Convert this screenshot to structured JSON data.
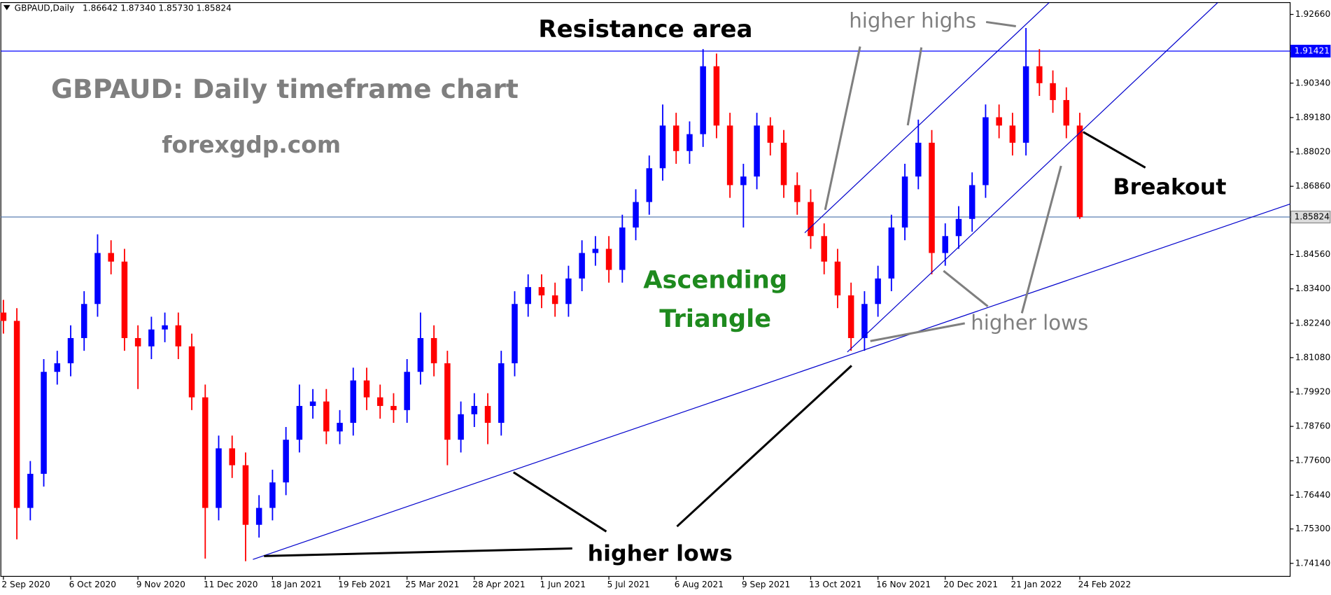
{
  "chart_data": {
    "type": "candlestick",
    "header": {
      "symbol": "GBPAUD,Daily",
      "ohlc": "1.86642 1.87340 1.85730 1.85824"
    },
    "title": "GBPAUD: Daily timeframe chart",
    "subtitle": "forexgdp.com",
    "annotations": {
      "resistance": "Resistance area",
      "pattern": [
        "Ascending",
        "Triangle"
      ],
      "higher_highs": "higher highs",
      "higher_lows_channel": "higher lows",
      "higher_lows_triangle": "higher lows",
      "breakout": "Breakout"
    },
    "categories": [
      "2 Sep 2020",
      null,
      null,
      null,
      null,
      "6 Oct 2020",
      null,
      null,
      null,
      null,
      "9 Nov 2020",
      null,
      null,
      null,
      null,
      "11 Dec 2020",
      null,
      null,
      null,
      null,
      "18 Jan 2021",
      null,
      null,
      null,
      null,
      "19 Feb 2021",
      null,
      null,
      null,
      null,
      "25 Mar 2021",
      null,
      null,
      null,
      null,
      "28 Apr 2021",
      null,
      null,
      null,
      null,
      "1 Jun 2021",
      null,
      null,
      null,
      null,
      "5 Jul 2021",
      null,
      null,
      null,
      null,
      "6 Aug 2021",
      null,
      null,
      null,
      null,
      "9 Sep 2021",
      null,
      null,
      null,
      null,
      "13 Oct 2021",
      null,
      null,
      null,
      null,
      "16 Nov 2021",
      null,
      null,
      null,
      null,
      "20 Dec 2021",
      null,
      null,
      null,
      null,
      "21 Jan 2022",
      null,
      null,
      null,
      null,
      "24 Feb 2022"
    ],
    "open": [
      1.826,
      1.8232,
      1.7601,
      1.7716,
      1.806,
      1.8089,
      1.8174,
      1.8289,
      1.8461,
      1.8432,
      1.8174,
      1.8146,
      1.8203,
      1.8217,
      1.8146,
      1.7974,
      1.7601,
      1.7802,
      1.7745,
      1.7544,
      1.7601,
      1.7687,
      1.7831,
      1.7945,
      1.796,
      1.7859,
      1.7888,
      1.8031,
      1.7974,
      1.7945,
      1.7931,
      1.806,
      1.8174,
      1.8089,
      1.7831,
      1.7917,
      1.7945,
      1.7888,
      1.8089,
      1.8289,
      1.8346,
      1.8318,
      1.8289,
      1.8375,
      1.8461,
      1.8475,
      1.8404,
      1.8547,
      1.8633,
      1.8747,
      1.8891,
      1.8805,
      1.8862,
      1.9091,
      1.8891,
      1.869,
      1.8719,
      1.8891,
      1.8833,
      1.869,
      1.8633,
      1.8518,
      1.8432,
      1.8318,
      1.8174,
      1.8289,
      1.8375,
      1.8547,
      1.8719,
      1.8833,
      1.8461,
      1.8518,
      1.8576,
      1.869,
      1.8919,
      1.8891,
      1.8833,
      1.9091,
      1.9034,
      1.8977,
      1.8891
    ],
    "high": [
      1.8303,
      1.8275,
      1.7759,
      1.8103,
      1.8131,
      1.8217,
      1.8332,
      1.8524,
      1.8504,
      1.8475,
      1.8217,
      1.8246,
      1.826,
      1.826,
      1.8189,
      1.8017,
      1.7845,
      1.7845,
      1.7788,
      1.7644,
      1.773,
      1.7874,
      1.8017,
      1.8002,
      1.8002,
      1.7931,
      1.8074,
      1.8074,
      1.8017,
      1.7988,
      1.8103,
      1.826,
      1.8217,
      1.8131,
      1.796,
      1.7988,
      1.7988,
      1.8131,
      1.8332,
      1.8389,
      1.8389,
      1.8361,
      1.8418,
      1.8504,
      1.8518,
      1.8518,
      1.859,
      1.8676,
      1.879,
      1.8962,
      1.8934,
      1.8905,
      1.9149,
      1.9134,
      1.8934,
      1.8762,
      1.8934,
      1.8919,
      1.8876,
      1.8733,
      1.8676,
      1.8561,
      1.8475,
      1.8361,
      1.8332,
      1.8418,
      1.859,
      1.8762,
      1.8911,
      1.8876,
      1.8561,
      1.8619,
      1.8733,
      1.8962,
      1.8962,
      1.8934,
      1.922,
      1.9149,
      1.9077,
      1.902,
      1.8934
    ],
    "low": [
      1.8189,
      1.7495,
      1.7559,
      1.7673,
      1.8017,
      1.8045,
      1.8131,
      1.8246,
      1.8389,
      1.8131,
      1.8002,
      1.8103,
      1.816,
      1.8103,
      1.7931,
      1.743,
      1.7559,
      1.7702,
      1.7421,
      1.7501,
      1.7559,
      1.7644,
      1.7788,
      1.7902,
      1.7816,
      1.7816,
      1.7845,
      1.7931,
      1.7902,
      1.7888,
      1.7888,
      1.8017,
      1.8045,
      1.7745,
      1.7788,
      1.7874,
      1.7816,
      1.7845,
      1.8045,
      1.8246,
      1.8275,
      1.8246,
      1.8246,
      1.8332,
      1.8418,
      1.8361,
      1.8361,
      1.8504,
      1.859,
      1.8705,
      1.8762,
      1.8762,
      1.8819,
      1.8848,
      1.8647,
      1.8547,
      1.8676,
      1.879,
      1.8647,
      1.859,
      1.8475,
      1.8389,
      1.8275,
      1.8131,
      1.8131,
      1.8246,
      1.8332,
      1.8504,
      1.8676,
      1.8389,
      1.8418,
      1.8475,
      1.8533,
      1.8647,
      1.8848,
      1.879,
      1.879,
      1.8991,
      1.8934,
      1.8848,
      1.8576
    ],
    "close": [
      1.8232,
      1.7601,
      1.7716,
      1.806,
      1.8089,
      1.8174,
      1.8289,
      1.8461,
      1.8432,
      1.8174,
      1.8146,
      1.8203,
      1.8217,
      1.8146,
      1.7974,
      1.7601,
      1.7802,
      1.7745,
      1.7544,
      1.7601,
      1.7687,
      1.7831,
      1.7945,
      1.796,
      1.7859,
      1.7888,
      1.8031,
      1.7974,
      1.7945,
      1.7931,
      1.806,
      1.8174,
      1.8089,
      1.7831,
      1.7917,
      1.7945,
      1.7888,
      1.8089,
      1.8289,
      1.8346,
      1.8318,
      1.8289,
      1.8375,
      1.8461,
      1.8475,
      1.8404,
      1.8547,
      1.8633,
      1.8747,
      1.8891,
      1.8805,
      1.8862,
      1.9091,
      1.8891,
      1.869,
      1.8719,
      1.8891,
      1.8833,
      1.869,
      1.8633,
      1.8518,
      1.8432,
      1.8318,
      1.8174,
      1.8289,
      1.8375,
      1.8547,
      1.8719,
      1.8833,
      1.8461,
      1.8518,
      1.8576,
      1.869,
      1.8919,
      1.8891,
      1.8833,
      1.9091,
      1.9034,
      1.8977,
      1.8891,
      1.85824
    ],
    "up_color": "#0000ff",
    "down_color": "#ff0000",
    "ylim": [
      1.737,
      1.9306
    ],
    "yticks": [
      {
        "value": 1.9266,
        "label": "1.92660"
      },
      {
        "value": 1.9034,
        "label": "1.90340"
      },
      {
        "value": 1.8918,
        "label": "1.89180"
      },
      {
        "value": 1.8802,
        "label": "1.88020"
      },
      {
        "value": 1.8686,
        "label": "1.86860"
      },
      {
        "value": 1.8456,
        "label": "1.84560"
      },
      {
        "value": 1.834,
        "label": "1.83400"
      },
      {
        "value": 1.8224,
        "label": "1.82240"
      },
      {
        "value": 1.8108,
        "label": "1.81080"
      },
      {
        "value": 1.7992,
        "label": "1.79920"
      },
      {
        "value": 1.7876,
        "label": "1.78760"
      },
      {
        "value": 1.776,
        "label": "1.77600"
      },
      {
        "value": 1.7644,
        "label": "1.76440"
      },
      {
        "value": 1.753,
        "label": "1.75300"
      },
      {
        "value": 1.7414,
        "label": "1.74140"
      }
    ],
    "hlines": [
      {
        "value": 1.91421,
        "color": "#0000ff"
      },
      {
        "value": 1.85824,
        "color": "#5b7fb0"
      }
    ]
  }
}
